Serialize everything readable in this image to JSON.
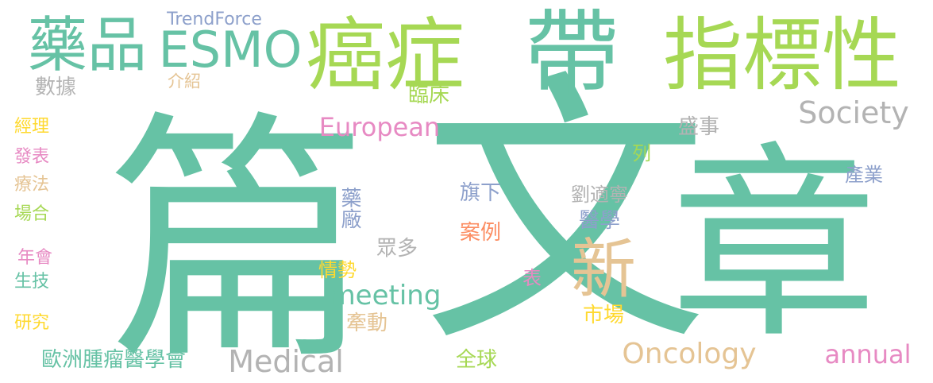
{
  "words": [
    {
      "text": "篇",
      "color": "#66c2a5"
    },
    {
      "text": "章",
      "color": "#66c2a5"
    },
    {
      "text": "文",
      "color": "#66c2a5"
    },
    {
      "text": "帶",
      "color": "#66c2a5"
    },
    {
      "text": "癌症",
      "color": "#a6d854"
    },
    {
      "text": "指標性",
      "color": "#a6d854"
    },
    {
      "text": "藥品",
      "color": "#66c2a5"
    },
    {
      "text": "ESMO",
      "color": "#66c2a5"
    },
    {
      "text": "新",
      "color": "#e5c494"
    },
    {
      "text": "TrendForce",
      "color": "#8da0cb"
    },
    {
      "text": "數據",
      "color": "#b3b3b3"
    },
    {
      "text": "介紹",
      "color": "#e5c494"
    },
    {
      "text": "臨床",
      "color": "#a6d854"
    },
    {
      "text": "European",
      "color": "#e78ac3"
    },
    {
      "text": "Society",
      "color": "#b3b3b3"
    },
    {
      "text": "盛事",
      "color": "#b3b3b3"
    },
    {
      "text": "列",
      "color": "#a6d854"
    },
    {
      "text": "產業",
      "color": "#8da0cb"
    },
    {
      "text": "劉適寧",
      "color": "#b3b3b3"
    },
    {
      "text": "經理",
      "color": "#ffd92f"
    },
    {
      "text": "發表",
      "color": "#e78ac3"
    },
    {
      "text": "療法",
      "color": "#e5c494"
    },
    {
      "text": "場合",
      "color": "#a6d854"
    },
    {
      "text": "年會",
      "color": "#e78ac3"
    },
    {
      "text": "生技",
      "color": "#66c2a5"
    },
    {
      "text": "研究",
      "color": "#ffd92f"
    },
    {
      "text": "旗下",
      "color": "#8da0cb"
    },
    {
      "text": "醫學",
      "color": "#8da0cb"
    },
    {
      "text": "藥廠",
      "color": "#8da0cb"
    },
    {
      "text": "案例",
      "color": "#fc8d62"
    },
    {
      "text": "眾多",
      "color": "#b3b3b3"
    },
    {
      "text": "情勢",
      "color": "#ffd92f"
    },
    {
      "text": "表",
      "color": "#e78ac3"
    },
    {
      "text": "meeting",
      "color": "#66c2a5"
    },
    {
      "text": "市場",
      "color": "#ffd92f"
    },
    {
      "text": "牽動",
      "color": "#e5c494"
    },
    {
      "text": "全球",
      "color": "#a6d854"
    },
    {
      "text": "歐洲腫瘤醫學會",
      "color": "#66c2a5"
    },
    {
      "text": "Medical",
      "color": "#b3b3b3"
    },
    {
      "text": "Oncology",
      "color": "#e5c494"
    },
    {
      "text": "annual",
      "color": "#e78ac3"
    }
  ]
}
